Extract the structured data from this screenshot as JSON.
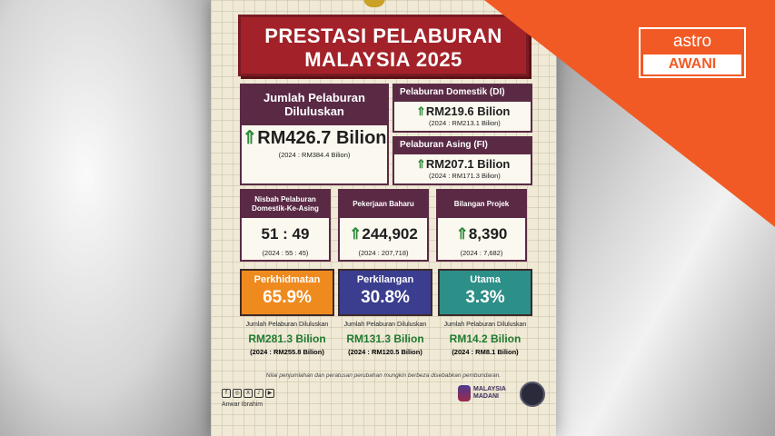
{
  "title": {
    "line1": "PRESTASI PELABURAN",
    "line2": "MALAYSIA 2025"
  },
  "total": {
    "head": "Jumlah Pelaburan Diluluskan",
    "value": "RM426.7 Bilion",
    "prev": "(2024 : RM384.4 Bilion)"
  },
  "domestic": {
    "head": "Pelaburan Domestik (DI)",
    "value": "RM219.6 Bilion",
    "prev": "(2024 : RM213.1 Bilion)"
  },
  "foreign": {
    "head": "Pelaburan Asing (FI)",
    "value": "RM207.1 Bilion",
    "prev": "(2024 : RM171.3 Bilion)"
  },
  "ratio": {
    "head": "Nisbah Pelaburan Domestik-Ke-Asing",
    "value": "51 : 49",
    "prev": "(2024 : 55 : 45)"
  },
  "jobs": {
    "head": "Pekerjaan Baharu",
    "value": "244,902",
    "prev": "(2024 : 207,718)"
  },
  "projects": {
    "head": "Bilangan Projek",
    "value": "8,390",
    "prev": "(2024 : 7,682)"
  },
  "sectors": [
    {
      "name": "Perkhidmatan",
      "percent": "65.9%",
      "label": "Jumlah Pelaburan Diluluskan",
      "amount": "RM281.3 Bilion",
      "prev": "(2024 : RM255.8 Bilion)",
      "color": "#ef8a1f"
    },
    {
      "name": "Perkilangan",
      "percent": "30.8%",
      "label": "Jumlah Pelaburan Diluluskan",
      "amount": "RM131.3 Bilion",
      "prev": "(2024 : RM120.5 Bilion)",
      "color": "#3b3d8f"
    },
    {
      "name": "Utama",
      "percent": "3.3%",
      "label": "Jumlah Pelaburan Diluluskan",
      "amount": "RM14.2 Bilion",
      "prev": "(2024 : RM8.1 Bilion)",
      "color": "#2c8f88"
    }
  ],
  "note": "Nilai penjumlahan dan peratusan perubahan mungkin berbeza disebabkan pembundaran.",
  "handle": "Anwar Ibrahim",
  "madani": {
    "line1": "MALAYSIA",
    "line2": "MADANI"
  },
  "broadcaster": {
    "line1": "astro",
    "line2": "AWANI",
    "color": "#f15a24"
  },
  "icons": {
    "up_arrow": "up-arrow-icon"
  }
}
